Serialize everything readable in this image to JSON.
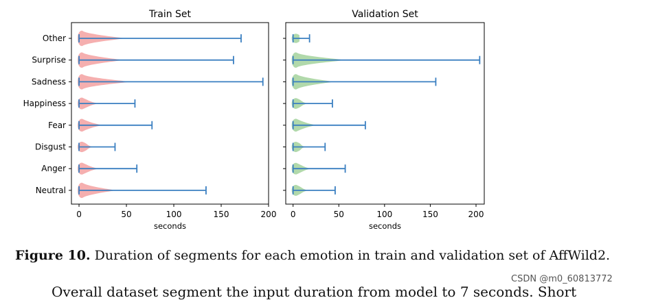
{
  "chart_data": [
    {
      "type": "violin",
      "title": "Train Set",
      "xlabel": "seconds",
      "ylabel": "",
      "xlim": [
        -8,
        200
      ],
      "xticks": [
        0,
        50,
        100,
        150,
        200
      ],
      "categories": [
        "Neutral",
        "Anger",
        "Disgust",
        "Fear",
        "Happiness",
        "Sadness",
        "Surprise",
        "Other"
      ],
      "min": [
        0,
        0,
        0,
        0,
        0,
        0,
        0,
        0
      ],
      "max": [
        134,
        61,
        38,
        77,
        59,
        194,
        163,
        171
      ],
      "color": "#f4a6a6",
      "whisker_color": "#3a7fc1"
    },
    {
      "type": "violin",
      "title": "Validation Set",
      "xlabel": "seconds",
      "ylabel": "",
      "xlim": [
        -8,
        209
      ],
      "xticks": [
        0,
        50,
        100,
        150,
        200
      ],
      "categories": [
        "Neutral",
        "Anger",
        "Disgust",
        "Fear",
        "Happiness",
        "Sadness",
        "Surprise",
        "Other"
      ],
      "min": [
        0,
        0,
        0,
        0,
        0,
        0,
        0,
        0
      ],
      "max": [
        46,
        57,
        35,
        79,
        43,
        156,
        204,
        18
      ],
      "color": "#a8d5a2",
      "whisker_color": "#3a7fc1"
    }
  ],
  "caption": {
    "label": "Figure 10.",
    "text": " Duration of segments for each emotion in train and validation set of AffWild2."
  },
  "watermark": "CSDN @m0_60813772",
  "next_paragraph": "Overall dataset segment the input duration from model to 7 seconds. Short"
}
